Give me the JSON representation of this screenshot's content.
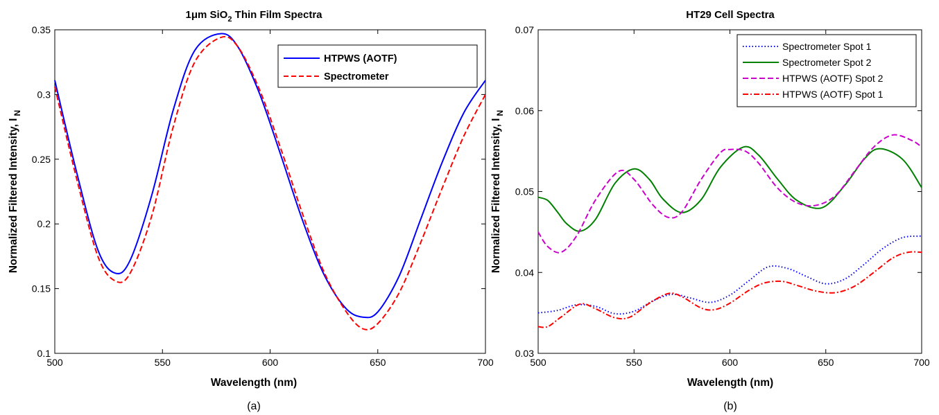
{
  "chart_data": [
    {
      "type": "line",
      "panel_label": "(a)",
      "title_parts": [
        "1",
        "μ",
        "m SiO",
        "2",
        " Thin Film Spectra"
      ],
      "xlabel": "Wavelength (nm)",
      "ylabel_main": "Normalized Filtered Intensity, I",
      "ylabel_sub": "N",
      "xlim": [
        500,
        700
      ],
      "ylim": [
        0.1,
        0.35
      ],
      "xticks": [
        500,
        550,
        600,
        650,
        700
      ],
      "yticks": [
        0.1,
        0.15,
        0.2,
        0.25,
        0.3,
        0.35
      ],
      "xtick_labels": [
        "500",
        "550",
        "600",
        "650",
        "700"
      ],
      "ytick_labels": [
        "0.1",
        "0.15",
        "0.2",
        "0.25",
        "0.3",
        "0.35"
      ],
      "grid": false,
      "legend_position": "top-right",
      "x": [
        500,
        510,
        520,
        528,
        535,
        545,
        555,
        565,
        577,
        585,
        595,
        605,
        615,
        625,
        635,
        643,
        650,
        660,
        670,
        680,
        690,
        700
      ],
      "series": [
        {
          "name": "HTPWS (AOTF)",
          "color": "#0000ff",
          "dash": "solid",
          "values": [
            0.311,
            0.241,
            0.18,
            0.162,
            0.172,
            0.222,
            0.288,
            0.334,
            0.347,
            0.337,
            0.301,
            0.253,
            0.203,
            0.161,
            0.135,
            0.128,
            0.132,
            0.16,
            0.204,
            0.248,
            0.286,
            0.311
          ]
        },
        {
          "name": "Spectrometer",
          "color": "#ff0000",
          "dash": "dashed",
          "values": [
            0.306,
            0.236,
            0.175,
            0.156,
            0.162,
            0.206,
            0.275,
            0.325,
            0.344,
            0.337,
            0.304,
            0.258,
            0.208,
            0.163,
            0.133,
            0.119,
            0.123,
            0.147,
            0.186,
            0.228,
            0.268,
            0.3
          ]
        }
      ]
    },
    {
      "type": "line",
      "panel_label": "(b)",
      "title": "HT29 Cell Spectra",
      "xlabel": "Wavelength (nm)",
      "ylabel_main": "Normalized Filtered Intensity, I",
      "ylabel_sub": "N",
      "xlim": [
        500,
        700
      ],
      "ylim": [
        0.03,
        0.07
      ],
      "xticks": [
        500,
        550,
        600,
        650,
        700
      ],
      "yticks": [
        0.03,
        0.04,
        0.05,
        0.06,
        0.07
      ],
      "xtick_labels": [
        "500",
        "550",
        "600",
        "650",
        "700"
      ],
      "ytick_labels": [
        "0.03",
        "0.04",
        "0.05",
        "0.06",
        "0.07"
      ],
      "grid": false,
      "legend_position": "top-right",
      "series": [
        {
          "name": "Spectrometer Spot 1",
          "color": "#0000ff",
          "dash": "dotted",
          "x": [
            500,
            510,
            520,
            530,
            540,
            550,
            560,
            570,
            580,
            590,
            600,
            610,
            620,
            630,
            640,
            650,
            660,
            670,
            680,
            690,
            700
          ],
          "values": [
            0.035,
            0.0353,
            0.036,
            0.0358,
            0.0349,
            0.0352,
            0.0365,
            0.0373,
            0.0368,
            0.0363,
            0.0372,
            0.039,
            0.0407,
            0.0405,
            0.0395,
            0.0386,
            0.0392,
            0.041,
            0.043,
            0.0443,
            0.0445
          ]
        },
        {
          "name": "Spectrometer Spot 2",
          "color": "#008000",
          "dash": "solid",
          "x": [
            500,
            505,
            510,
            515,
            522,
            530,
            540,
            550,
            558,
            565,
            575,
            585,
            595,
            607,
            615,
            625,
            635,
            648,
            660,
            670,
            678,
            690,
            700
          ],
          "values": [
            0.0493,
            0.0489,
            0.0475,
            0.046,
            0.0451,
            0.0466,
            0.051,
            0.0528,
            0.0515,
            0.0491,
            0.0474,
            0.049,
            0.053,
            0.0555,
            0.0545,
            0.0515,
            0.0489,
            0.048,
            0.0508,
            0.054,
            0.0553,
            0.054,
            0.0505
          ]
        },
        {
          "name": "HTPWS (AOTF) Spot 2",
          "color": "#cc00cc",
          "dash": "dashed",
          "x": [
            500,
            505,
            512,
            520,
            530,
            542,
            550,
            560,
            568,
            575,
            585,
            595,
            600,
            608,
            615,
            625,
            635,
            645,
            655,
            665,
            675,
            685,
            695,
            700
          ],
          "values": [
            0.045,
            0.0432,
            0.0425,
            0.0445,
            0.049,
            0.0525,
            0.0515,
            0.0483,
            0.0468,
            0.0475,
            0.0515,
            0.0548,
            0.0552,
            0.055,
            0.0535,
            0.0504,
            0.0486,
            0.0483,
            0.0495,
            0.0525,
            0.0555,
            0.057,
            0.0563,
            0.0555
          ]
        },
        {
          "name": "HTPWS (AOTF) Spot 1",
          "color": "#ff0000",
          "dash": "dashdot",
          "x": [
            500,
            505,
            512,
            522,
            530,
            540,
            548,
            558,
            568,
            575,
            585,
            592,
            600,
            610,
            618,
            627,
            635,
            645,
            655,
            665,
            675,
            685,
            693,
            700
          ],
          "values": [
            0.0333,
            0.0333,
            0.0345,
            0.0361,
            0.0355,
            0.0344,
            0.0345,
            0.0362,
            0.0374,
            0.037,
            0.0356,
            0.0354,
            0.0362,
            0.0378,
            0.0387,
            0.0389,
            0.0384,
            0.0377,
            0.0375,
            0.0383,
            0.04,
            0.0418,
            0.0425,
            0.0425
          ]
        }
      ]
    }
  ]
}
